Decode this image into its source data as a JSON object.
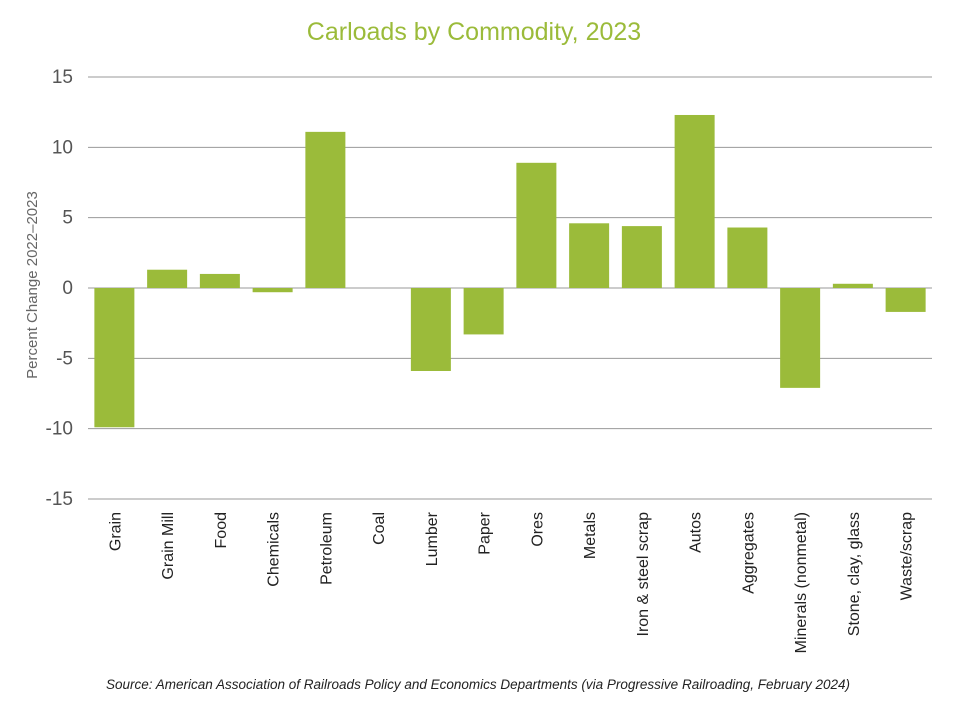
{
  "chart_data": {
    "type": "bar",
    "title": "Carloads by Commodity, 2023",
    "ylabel": "Percent Change 2022–2023",
    "xlabel": "",
    "ylim": [
      -15,
      15
    ],
    "yticks": [
      15,
      10,
      5,
      0,
      -5,
      -10,
      -15
    ],
    "ytick_labels": [
      "15",
      "10",
      "5",
      "0",
      "-5",
      "-10",
      "-15"
    ],
    "grid": true,
    "bar_color": "#9bbb3a",
    "categories": [
      "Grain",
      "Grain Mill",
      "Food",
      "Chemicals",
      "Petroleum",
      "Coal",
      "Lumber",
      "Paper",
      "Ores",
      "Metals",
      "Iron & steel scrap",
      "Autos",
      "Aggregates",
      "Minerals (nonmetal)",
      "Stone, clay, glass",
      "Waste/scrap"
    ],
    "values": [
      -9.9,
      1.3,
      1.0,
      -0.3,
      11.1,
      0.0,
      -5.9,
      -3.3,
      8.9,
      4.6,
      4.4,
      12.3,
      4.3,
      -7.1,
      0.3,
      -1.7
    ],
    "source": "Source: American Association of Railroads Policy and Economics Departments (via Progressive Railroading, February 2024)"
  }
}
